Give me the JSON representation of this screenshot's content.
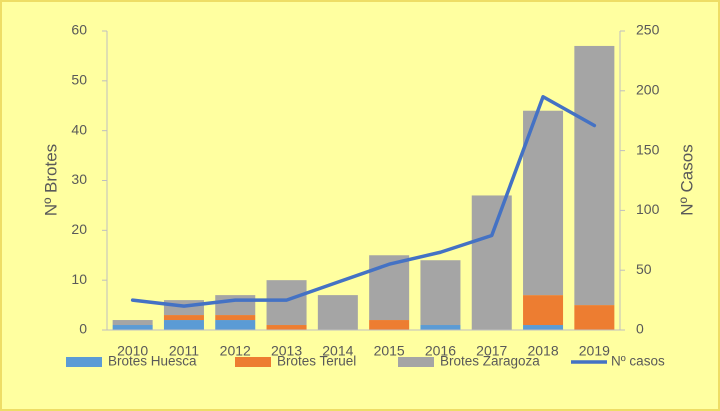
{
  "chart_data": {
    "type": "bar",
    "stacked": true,
    "categories": [
      "2010",
      "2011",
      "2012",
      "2013",
      "2014",
      "2015",
      "2016",
      "2017",
      "2018",
      "2019"
    ],
    "series": [
      {
        "name": "Brotes Huesca",
        "color": "#5b9bd5",
        "values": [
          1,
          2,
          2,
          0,
          0,
          0,
          1,
          0,
          1,
          0
        ]
      },
      {
        "name": "Brotes Teruel",
        "color": "#ed7d31",
        "values": [
          0,
          1,
          1,
          1,
          0,
          2,
          0,
          0,
          6,
          5
        ]
      },
      {
        "name": "Brotes Zaragoza",
        "color": "#a5a5a5",
        "values": [
          1,
          3,
          4,
          9,
          7,
          13,
          13,
          27,
          37,
          52
        ]
      },
      {
        "name": "Nº casos",
        "color": "#4472c4",
        "type": "line",
        "axis": "y2",
        "values": [
          25,
          20,
          25,
          25,
          40,
          55,
          65,
          79,
          195,
          171
        ]
      }
    ],
    "ylabel": "Nº Brotes",
    "y2label": "Nº Casos",
    "ylim": [
      0,
      60
    ],
    "yticks": [
      0,
      10,
      20,
      30,
      40,
      50,
      60
    ],
    "y2lim": [
      0,
      250
    ],
    "y2ticks": [
      0,
      50,
      100,
      150,
      200,
      250
    ],
    "grid": false,
    "legend": "bottom"
  }
}
